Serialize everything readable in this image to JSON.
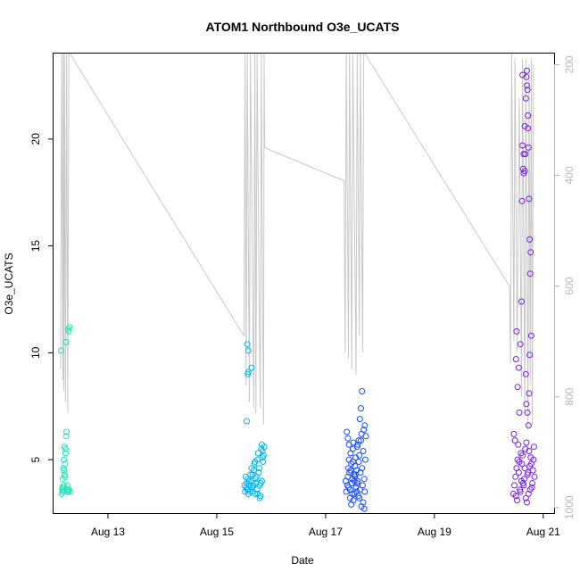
{
  "chart_data": {
    "type": "scatter",
    "title": "ATOM1 Northbound O3e_UCATS",
    "xlabel": "Date",
    "ylabel": "O3e_UCATS",
    "x_unit": "days (August)",
    "xlim": [
      12.0,
      21.2
    ],
    "ylim": [
      2.5,
      24
    ],
    "x_ticks": [
      {
        "value": 13,
        "label": "Aug 13"
      },
      {
        "value": 15,
        "label": "Aug 15"
      },
      {
        "value": 17,
        "label": "Aug 17"
      },
      {
        "value": 19,
        "label": "Aug 19"
      },
      {
        "value": 21,
        "label": "Aug 21"
      }
    ],
    "y_ticks": [
      5,
      10,
      15,
      20
    ],
    "y2_axis": {
      "label": "",
      "lim": [
        1010,
        180
      ],
      "reversed": true,
      "ticks": [
        200,
        400,
        600,
        800,
        1000
      ],
      "color": "#b8b8b8"
    },
    "grid": false,
    "legend": "none",
    "series": [
      {
        "color": "#1de9b6",
        "points": [
          [
            12.15,
            3.4
          ],
          [
            12.16,
            3.6
          ],
          [
            12.17,
            3.5
          ],
          [
            12.18,
            3.7
          ],
          [
            12.19,
            3.8
          ],
          [
            12.17,
            4.1
          ],
          [
            12.2,
            4.3
          ],
          [
            12.18,
            4.6
          ],
          [
            12.21,
            4.8
          ],
          [
            12.19,
            5.0
          ],
          [
            12.22,
            5.3
          ],
          [
            12.2,
            5.6
          ],
          [
            12.23,
            6.1
          ],
          [
            12.24,
            6.3
          ],
          [
            12.22,
            5.5
          ],
          [
            12.18,
            3.5
          ],
          [
            12.26,
            3.6
          ],
          [
            12.27,
            3.5
          ],
          [
            12.25,
            3.8
          ],
          [
            12.28,
            3.6
          ],
          [
            12.3,
            3.5
          ],
          [
            12.21,
            4.2
          ],
          [
            12.16,
            3.7
          ],
          [
            12.14,
            10.1
          ],
          [
            12.23,
            10.5
          ],
          [
            12.28,
            11.0
          ],
          [
            12.29,
            11.2
          ],
          [
            12.27,
            11.1
          ],
          [
            12.19,
            4.5
          ],
          [
            12.25,
            3.5
          ]
        ]
      },
      {
        "color": "#00b4ee",
        "points": [
          [
            15.52,
            3.5
          ],
          [
            15.54,
            3.7
          ],
          [
            15.55,
            3.9
          ],
          [
            15.57,
            4.1
          ],
          [
            15.58,
            3.6
          ],
          [
            15.6,
            3.8
          ],
          [
            15.62,
            4.3
          ],
          [
            15.63,
            4.0
          ],
          [
            15.65,
            3.7
          ],
          [
            15.66,
            3.5
          ],
          [
            15.68,
            4.5
          ],
          [
            15.69,
            4.8
          ],
          [
            15.7,
            3.4
          ],
          [
            15.72,
            3.9
          ],
          [
            15.73,
            4.2
          ],
          [
            15.75,
            5.0
          ],
          [
            15.76,
            5.3
          ],
          [
            15.78,
            4.6
          ],
          [
            15.79,
            3.8
          ],
          [
            15.8,
            3.3
          ],
          [
            15.82,
            5.5
          ],
          [
            15.83,
            5.7
          ],
          [
            15.84,
            5.1
          ],
          [
            15.85,
            4.9
          ],
          [
            15.81,
            3.9
          ],
          [
            15.77,
            4.4
          ],
          [
            15.74,
            3.6
          ],
          [
            15.71,
            4.1
          ],
          [
            15.67,
            3.8
          ],
          [
            15.64,
            4.6
          ],
          [
            15.61,
            3.5
          ],
          [
            15.59,
            4.0
          ],
          [
            15.56,
            3.6
          ],
          [
            15.53,
            4.2
          ],
          [
            15.51,
            3.8
          ],
          [
            15.58,
            3.4
          ],
          [
            15.83,
            4.0
          ],
          [
            15.84,
            5.4
          ],
          [
            15.86,
            5.2
          ],
          [
            15.87,
            5.6
          ],
          [
            15.55,
            6.8
          ],
          [
            15.57,
            9.0
          ],
          [
            15.58,
            9.1
          ],
          [
            15.56,
            10.4
          ],
          [
            15.58,
            10.1
          ],
          [
            15.64,
            9.3
          ],
          [
            15.79,
            3.2
          ],
          [
            15.75,
            3.4
          ],
          [
            15.7,
            4.9
          ],
          [
            15.66,
            4.3
          ]
        ]
      },
      {
        "color": "#1a4dff",
        "points": [
          [
            17.38,
            3.5
          ],
          [
            17.4,
            3.8
          ],
          [
            17.41,
            4.2
          ],
          [
            17.42,
            4.6
          ],
          [
            17.43,
            5.0
          ],
          [
            17.44,
            4.4
          ],
          [
            17.45,
            3.6
          ],
          [
            17.46,
            5.3
          ],
          [
            17.47,
            4.8
          ],
          [
            17.48,
            3.9
          ],
          [
            17.49,
            4.1
          ],
          [
            17.5,
            5.5
          ],
          [
            17.51,
            5.8
          ],
          [
            17.52,
            4.3
          ],
          [
            17.53,
            3.4
          ],
          [
            17.54,
            4.7
          ],
          [
            17.55,
            5.1
          ],
          [
            17.56,
            3.7
          ],
          [
            17.57,
            4.5
          ],
          [
            17.58,
            5.6
          ],
          [
            17.59,
            4.0
          ],
          [
            17.6,
            3.3
          ],
          [
            17.61,
            4.9
          ],
          [
            17.62,
            5.2
          ],
          [
            17.63,
            3.6
          ],
          [
            17.64,
            4.4
          ],
          [
            17.65,
            5.9
          ],
          [
            17.66,
            6.2
          ],
          [
            17.67,
            4.6
          ],
          [
            17.68,
            3.8
          ],
          [
            17.69,
            5.4
          ],
          [
            17.7,
            6.4
          ],
          [
            17.71,
            4.1
          ],
          [
            17.72,
            3.5
          ],
          [
            17.73,
            5.0
          ],
          [
            17.39,
            6.3
          ],
          [
            17.41,
            6.0
          ],
          [
            17.43,
            5.7
          ],
          [
            17.45,
            3.2
          ],
          [
            17.47,
            2.9
          ],
          [
            17.49,
            3.4
          ],
          [
            17.51,
            3.1
          ],
          [
            17.53,
            4.0
          ],
          [
            17.55,
            4.3
          ],
          [
            17.57,
            3.5
          ],
          [
            17.59,
            5.7
          ],
          [
            17.61,
            5.9
          ],
          [
            17.63,
            6.9
          ],
          [
            17.65,
            7.4
          ],
          [
            17.67,
            8.2
          ],
          [
            17.69,
            3.0
          ],
          [
            17.71,
            2.7
          ],
          [
            17.66,
            2.8
          ],
          [
            17.62,
            3.2
          ],
          [
            17.58,
            3.9
          ],
          [
            17.54,
            4.2
          ],
          [
            17.5,
            4.9
          ],
          [
            17.46,
            4.5
          ],
          [
            17.42,
            3.7
          ],
          [
            17.37,
            4.0
          ],
          [
            17.74,
            6.1
          ],
          [
            17.72,
            6.6
          ]
        ]
      },
      {
        "color": "#7a1fe6",
        "points": [
          [
            20.45,
            3.4
          ],
          [
            20.47,
            3.8
          ],
          [
            20.49,
            4.2
          ],
          [
            20.51,
            4.6
          ],
          [
            20.53,
            5.0
          ],
          [
            20.55,
            4.4
          ],
          [
            20.57,
            3.6
          ],
          [
            20.59,
            5.3
          ],
          [
            20.61,
            4.8
          ],
          [
            20.63,
            3.9
          ],
          [
            20.65,
            4.1
          ],
          [
            20.67,
            5.5
          ],
          [
            20.69,
            5.8
          ],
          [
            20.71,
            4.3
          ],
          [
            20.73,
            3.4
          ],
          [
            20.75,
            4.7
          ],
          [
            20.77,
            5.1
          ],
          [
            20.79,
            3.7
          ],
          [
            20.81,
            4.5
          ],
          [
            20.83,
            5.6
          ],
          [
            20.46,
            6.2
          ],
          [
            20.48,
            5.9
          ],
          [
            20.5,
            3.3
          ],
          [
            20.52,
            3.1
          ],
          [
            20.54,
            5.7
          ],
          [
            20.56,
            4.9
          ],
          [
            20.58,
            3.5
          ],
          [
            20.6,
            4.0
          ],
          [
            20.62,
            5.2
          ],
          [
            20.64,
            3.8
          ],
          [
            20.66,
            4.6
          ],
          [
            20.68,
            3.2
          ],
          [
            20.7,
            3.0
          ],
          [
            20.72,
            4.4
          ],
          [
            20.74,
            5.4
          ],
          [
            20.76,
            3.6
          ],
          [
            20.78,
            4.8
          ],
          [
            20.8,
            3.9
          ],
          [
            20.82,
            5.0
          ],
          [
            20.84,
            4.2
          ],
          [
            20.5,
            9.7
          ],
          [
            20.51,
            11.0
          ],
          [
            20.53,
            8.4
          ],
          [
            20.56,
            7.2
          ],
          [
            20.58,
            10.4
          ],
          [
            20.6,
            12.4
          ],
          [
            20.61,
            17.1
          ],
          [
            20.62,
            19.7
          ],
          [
            20.63,
            18.6
          ],
          [
            20.64,
            18.4
          ],
          [
            20.66,
            18.5
          ],
          [
            20.67,
            19.3
          ],
          [
            20.68,
            21.9
          ],
          [
            20.69,
            22.9
          ],
          [
            20.7,
            23.2
          ],
          [
            20.71,
            22.3
          ],
          [
            20.72,
            21.1
          ],
          [
            20.73,
            19.6
          ],
          [
            20.74,
            17.2
          ],
          [
            20.75,
            15.3
          ],
          [
            20.76,
            13.7
          ],
          [
            20.77,
            14.7
          ],
          [
            20.78,
            10.8
          ],
          [
            20.68,
            9.0
          ],
          [
            20.69,
            7.6
          ],
          [
            20.71,
            7.2
          ],
          [
            20.73,
            6.6
          ],
          [
            20.75,
            9.9
          ],
          [
            20.74,
            8.1
          ],
          [
            20.64,
            19.3
          ],
          [
            20.66,
            20.6
          ],
          [
            20.7,
            22.5
          ],
          [
            20.72,
            20.5
          ],
          [
            20.62,
            23.0
          ],
          [
            20.55,
            9.3
          ]
        ]
      }
    ],
    "overlay_pressure": {
      "color": "#c8c8c8",
      "description_axis": "y2",
      "segments": [
        [
          [
            12.13,
            750
          ],
          [
            12.15,
            180
          ],
          [
            12.17,
            770
          ],
          [
            12.18,
            180
          ],
          [
            12.19,
            790
          ],
          [
            12.2,
            180
          ],
          [
            12.22,
            810
          ],
          [
            12.24,
            180
          ],
          [
            12.26,
            830
          ],
          [
            12.28,
            180
          ],
          [
            12.3,
            180
          ]
        ],
        [
          [
            12.3,
            180
          ],
          [
            15.5,
            690
          ]
        ],
        [
          [
            15.5,
            690
          ],
          [
            15.52,
            180
          ],
          [
            15.54,
            780
          ],
          [
            15.56,
            180
          ],
          [
            15.6,
            810
          ],
          [
            15.62,
            180
          ],
          [
            15.68,
            820
          ],
          [
            15.7,
            180
          ],
          [
            15.72,
            830
          ],
          [
            15.74,
            180
          ],
          [
            15.78,
            650
          ],
          [
            15.8,
            820
          ],
          [
            15.82,
            180
          ],
          [
            15.84,
            620
          ],
          [
            15.86,
            850
          ],
          [
            15.87,
            180
          ],
          [
            15.88,
            350
          ]
        ],
        [
          [
            15.88,
            350
          ],
          [
            17.34,
            410
          ]
        ],
        [
          [
            17.34,
            410
          ],
          [
            17.36,
            720
          ],
          [
            17.38,
            180
          ],
          [
            17.42,
            730
          ],
          [
            17.44,
            180
          ],
          [
            17.48,
            750
          ],
          [
            17.5,
            180
          ],
          [
            17.56,
            760
          ],
          [
            17.58,
            180
          ],
          [
            17.62,
            690
          ],
          [
            17.64,
            180
          ],
          [
            17.68,
            720
          ],
          [
            17.7,
            180
          ],
          [
            17.72,
            180
          ]
        ],
        [
          [
            17.72,
            180
          ],
          [
            20.38,
            600
          ]
        ],
        [
          [
            20.38,
            600
          ],
          [
            20.4,
            740
          ],
          [
            20.42,
            180
          ],
          [
            20.46,
            700
          ],
          [
            20.48,
            190
          ],
          [
            20.52,
            720
          ],
          [
            20.56,
            260
          ],
          [
            20.6,
            800
          ],
          [
            20.62,
            190
          ],
          [
            20.66,
            830
          ],
          [
            20.68,
            190
          ],
          [
            20.72,
            860
          ],
          [
            20.74,
            200
          ],
          [
            20.76,
            780
          ],
          [
            20.78,
            190
          ],
          [
            20.8,
            850
          ],
          [
            20.82,
            200
          ]
        ]
      ]
    }
  }
}
